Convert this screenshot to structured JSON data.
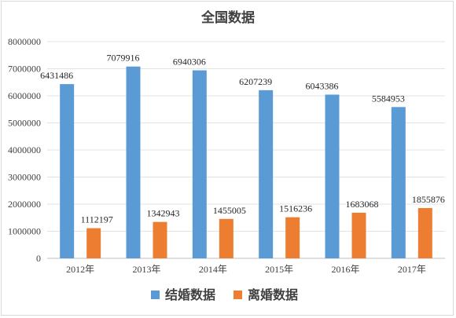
{
  "chart_data": {
    "type": "bar",
    "title": "全国数据",
    "categories": [
      "2012年",
      "2013年",
      "2014年",
      "2015年",
      "2016年",
      "2017年"
    ],
    "series": [
      {
        "name": "结婚数据",
        "color": "#5b9bd5",
        "values": [
          6431486,
          7079916,
          6940306,
          6207239,
          6043386,
          5584953
        ]
      },
      {
        "name": "离婚数据",
        "color": "#ed7d31",
        "values": [
          1112197,
          1342943,
          1455005,
          1516236,
          1683068,
          1855876
        ]
      }
    ],
    "ylim": [
      0,
      8000000
    ],
    "yticks": [
      0,
      1000000,
      2000000,
      3000000,
      4000000,
      5000000,
      6000000,
      7000000,
      8000000
    ],
    "grid": true,
    "legend": "bottom",
    "data_labels": true
  }
}
